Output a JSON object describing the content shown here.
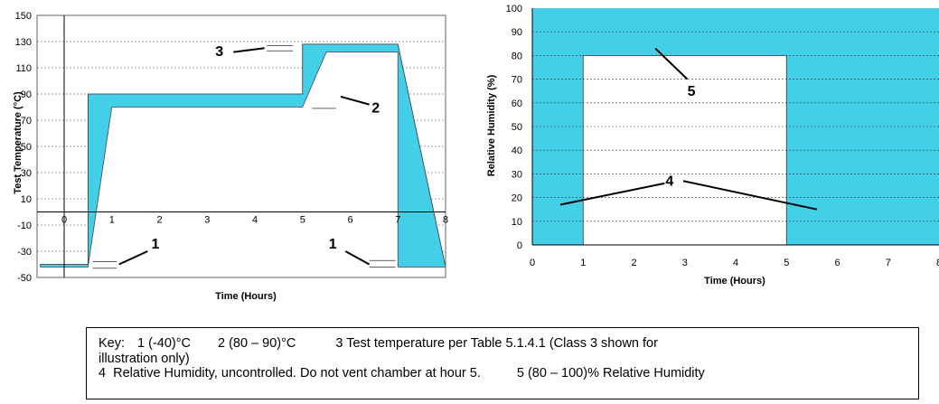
{
  "colors": {
    "fill": "#44cfe9",
    "grid": "#888888",
    "bg": "#ffffff"
  },
  "chart_data": [
    {
      "type": "area",
      "xlabel": "Time (Hours)",
      "ylabel": "Test Temperature (°C)",
      "xlim": [
        0,
        8
      ],
      "ylim": [
        -50,
        150
      ],
      "xticks": [
        "0",
        "1",
        "2",
        "3",
        "4",
        "5",
        "6",
        "7",
        "8"
      ],
      "yticks": [
        "150",
        "130",
        "110",
        "90",
        "70",
        "50",
        "30",
        "10",
        "-10",
        "-30",
        "-50"
      ],
      "grid": true,
      "series": [
        {
          "x": [
            -0.5,
            0.5,
            0.5,
            5,
            5,
            7,
            7,
            8,
            8,
            7,
            7,
            5.5,
            5,
            1,
            0.5,
            -0.5
          ],
          "values": [
            -40,
            -40,
            90,
            90,
            128,
            128,
            128,
            -42,
            -42,
            -42,
            122,
            122,
            80,
            80,
            -42,
            -42
          ]
        }
      ],
      "annotations": [
        {
          "text": "1",
          "x": 1.5,
          "y": -30
        },
        {
          "text": "1",
          "x": 5.6,
          "y": -30
        },
        {
          "text": "2",
          "x": 6.3,
          "y": 80
        },
        {
          "text": "3",
          "x": 3.3,
          "y": 125
        }
      ]
    },
    {
      "type": "area",
      "xlabel": "Time (Hours)",
      "ylabel": "Relative Humidity (%)",
      "xlim": [
        0,
        8
      ],
      "ylim": [
        0,
        100
      ],
      "xticks": [
        "0",
        "1",
        "2",
        "3",
        "4",
        "5",
        "6",
        "7",
        "8"
      ],
      "yticks": [
        "100",
        "90",
        "80",
        "70",
        "60",
        "50",
        "40",
        "30",
        "20",
        "10",
        "0"
      ],
      "grid": true,
      "series": [
        {
          "x": [
            0,
            1,
            1,
            5,
            5,
            8,
            8,
            0
          ],
          "values": [
            100,
            100,
            80,
            80,
            100,
            100,
            0,
            0
          ]
        },
        {
          "x": [
            1,
            5,
            5,
            1
          ],
          "values": [
            80,
            80,
            0,
            0
          ]
        }
      ],
      "annotations": [
        {
          "text": "4",
          "x": 2.8,
          "y": 26
        },
        {
          "text": "5",
          "x": 3.2,
          "y": 65
        }
      ]
    }
  ],
  "key": {
    "lead": "Key:",
    "k1": "1 (-40)°C",
    "k2": "2 (80 – 90)°C",
    "k3": "3 Test temperature per Table 5.1.4.1 (Class 3 shown for",
    "k3b": "illustration only)",
    "k4": "4  Relative Humidity, uncontrolled. Do not vent chamber at hour 5.",
    "k5": "5 (80 – 100)% Relative Humidity"
  }
}
